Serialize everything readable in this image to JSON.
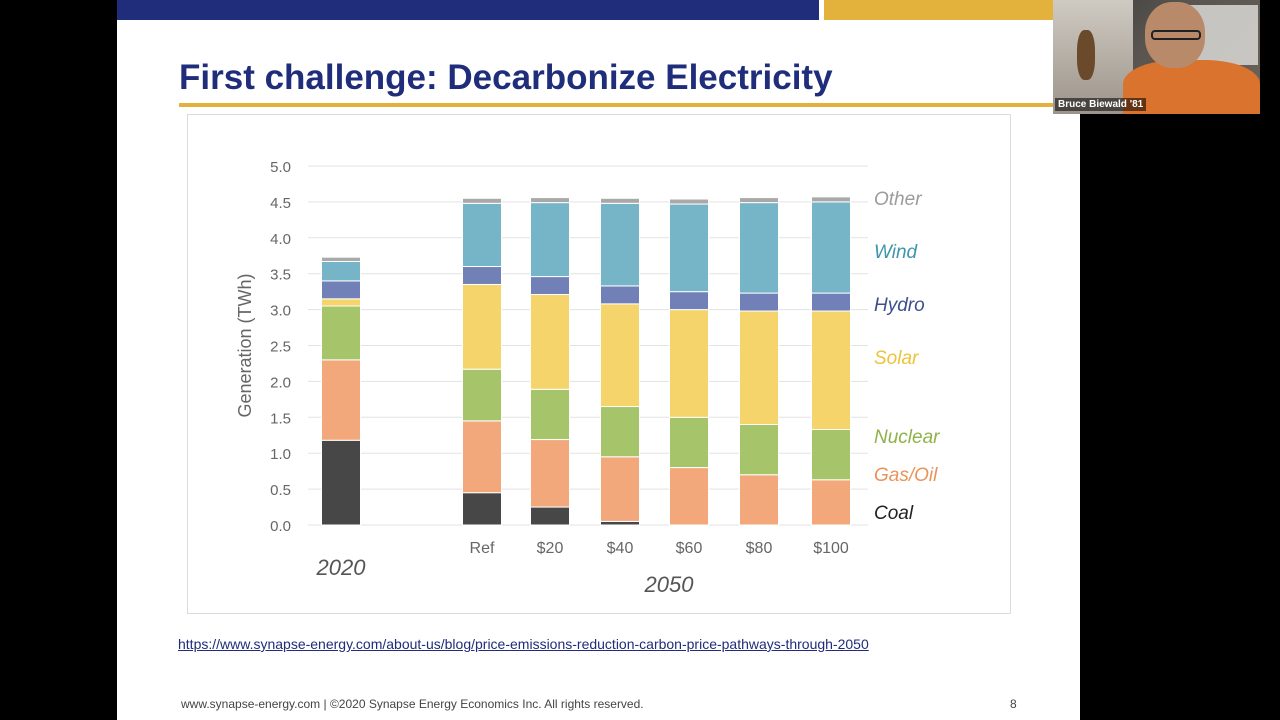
{
  "slide": {
    "title": "First challenge: Decarbonize Electricity",
    "link": "https://www.synapse-energy.com/about-us/blog/price-emissions-reduction-carbon-price-pathways-through-2050",
    "footer": "www.synapse-energy.com  |  ©2020 Synapse Energy Economics Inc. All rights reserved.",
    "page_number": "8"
  },
  "video": {
    "participant_name": "Bruce Biewald '81"
  },
  "colors": {
    "header_blue": "#1f2d7a",
    "header_gold": "#e3b23c"
  },
  "chart_data": {
    "type": "bar",
    "stacked": true,
    "ylabel": "Generation (TWh)",
    "ylim": [
      0,
      5.0
    ],
    "yticks": [
      "0.0",
      "0.5",
      "1.0",
      "1.5",
      "2.0",
      "2.5",
      "3.0",
      "3.5",
      "4.0",
      "4.5",
      "5.0"
    ],
    "grid": true,
    "legend_position": "right",
    "categories": [
      "",
      "Ref",
      "$20",
      "$40",
      "$60",
      "$80",
      "$100"
    ],
    "group_labels": [
      {
        "label": "2020",
        "categories": [
          ""
        ]
      },
      {
        "label": "2050",
        "categories": [
          "Ref",
          "$20",
          "$40",
          "$60",
          "$80",
          "$100"
        ]
      }
    ],
    "series": [
      {
        "name": "Coal",
        "color": "#474747",
        "label_color": "#222222",
        "values": [
          1.18,
          0.45,
          0.25,
          0.05,
          0,
          0,
          0
        ]
      },
      {
        "name": "Gas/Oil",
        "color": "#f2a87a",
        "label_color": "#e9935a",
        "values": [
          1.12,
          1.0,
          0.94,
          0.9,
          0.8,
          0.7,
          0.63
        ]
      },
      {
        "name": "Nuclear",
        "color": "#a6c46a",
        "label_color": "#8fb24a",
        "values": [
          0.75,
          0.72,
          0.7,
          0.7,
          0.7,
          0.7,
          0.7
        ]
      },
      {
        "name": "Solar",
        "color": "#f5d46b",
        "label_color": "#edc33a",
        "values": [
          0.1,
          1.18,
          1.32,
          1.43,
          1.5,
          1.58,
          1.65
        ]
      },
      {
        "name": "Hydro",
        "color": "#7180b6",
        "label_color": "#3d4f8c",
        "values": [
          0.25,
          0.25,
          0.25,
          0.25,
          0.25,
          0.25,
          0.25
        ]
      },
      {
        "name": "Wind",
        "color": "#76b4c8",
        "label_color": "#3f95ad",
        "values": [
          0.27,
          0.88,
          1.03,
          1.15,
          1.22,
          1.26,
          1.27
        ]
      },
      {
        "name": "Other",
        "color": "#a9a9a9",
        "label_color": "#9c9c9c",
        "values": [
          0.06,
          0.07,
          0.07,
          0.07,
          0.07,
          0.07,
          0.07
        ]
      }
    ]
  }
}
